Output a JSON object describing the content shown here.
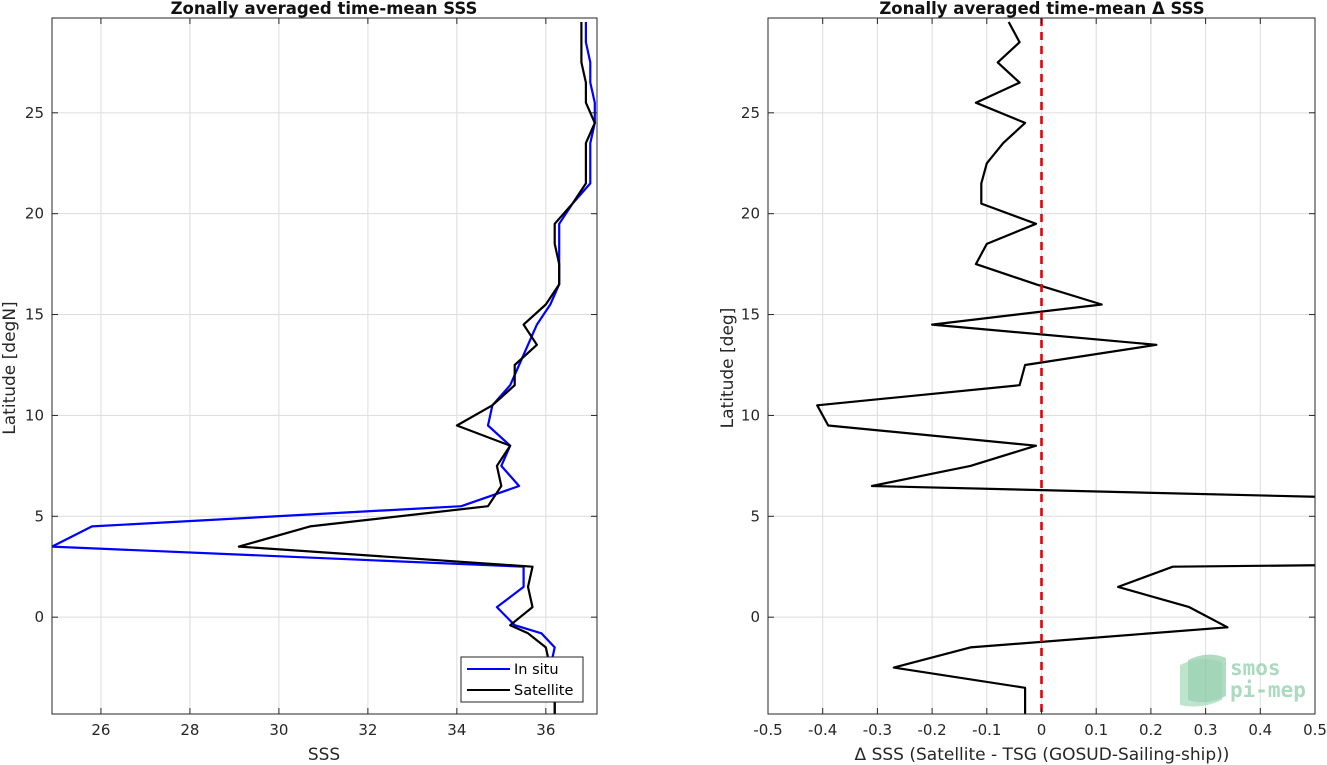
{
  "chart_data": [
    {
      "type": "line",
      "title": "Zonally averaged time-mean SSS",
      "xlabel": "SSS",
      "ylabel": "Latitude [degN]",
      "xlim": [
        24.9,
        37.15
      ],
      "ylim": [
        -4.8,
        29.7
      ],
      "xticks": [
        26,
        28,
        30,
        32,
        34,
        36
      ],
      "yticks": [
        0,
        5,
        10,
        15,
        20,
        25
      ],
      "grid": true,
      "legend_position": "bottom-right",
      "series": [
        {
          "name": "In situ",
          "color": "#0000ff",
          "points": [
            [
              36.2,
              -4.8
            ],
            [
              36.2,
              -3.5
            ],
            [
              36.1,
              -2.5
            ],
            [
              36.2,
              -1.5
            ],
            [
              35.9,
              -0.8
            ],
            [
              35.3,
              -0.4
            ],
            [
              34.9,
              0.5
            ],
            [
              35.5,
              1.5
            ],
            [
              35.5,
              2.5
            ],
            [
              24.9,
              3.5
            ],
            [
              25.8,
              4.5
            ],
            [
              34.1,
              5.5
            ],
            [
              35.4,
              6.5
            ],
            [
              35.0,
              7.5
            ],
            [
              35.2,
              8.5
            ],
            [
              34.7,
              9.5
            ],
            [
              34.8,
              10.5
            ],
            [
              35.2,
              11.5
            ],
            [
              35.4,
              12.5
            ],
            [
              35.6,
              13.5
            ],
            [
              35.8,
              14.5
            ],
            [
              36.1,
              15.5
            ],
            [
              36.3,
              16.5
            ],
            [
              36.3,
              17.5
            ],
            [
              36.3,
              18.5
            ],
            [
              36.3,
              19.5
            ],
            [
              36.6,
              20.5
            ],
            [
              37.0,
              21.5
            ],
            [
              37.0,
              22.5
            ],
            [
              37.0,
              23.5
            ],
            [
              37.1,
              24.5
            ],
            [
              37.1,
              25.5
            ],
            [
              37.0,
              26.5
            ],
            [
              37.0,
              27.5
            ],
            [
              36.9,
              28.5
            ],
            [
              36.9,
              29.5
            ]
          ]
        },
        {
          "name": "Satellite",
          "color": "#000000",
          "points": [
            [
              36.2,
              -4.8
            ],
            [
              36.2,
              -3.5
            ],
            [
              36.1,
              -2.5
            ],
            [
              36.0,
              -1.5
            ],
            [
              35.6,
              -0.8
            ],
            [
              35.2,
              -0.4
            ],
            [
              35.7,
              0.5
            ],
            [
              35.6,
              1.5
            ],
            [
              35.7,
              2.5
            ],
            [
              29.1,
              3.5
            ],
            [
              30.7,
              4.5
            ],
            [
              34.7,
              5.5
            ],
            [
              35.0,
              6.5
            ],
            [
              34.9,
              7.5
            ],
            [
              35.2,
              8.5
            ],
            [
              34.0,
              9.5
            ],
            [
              34.8,
              10.5
            ],
            [
              35.3,
              11.5
            ],
            [
              35.3,
              12.5
            ],
            [
              35.8,
              13.5
            ],
            [
              35.5,
              14.5
            ],
            [
              36.0,
              15.5
            ],
            [
              36.3,
              16.5
            ],
            [
              36.3,
              17.5
            ],
            [
              36.2,
              18.5
            ],
            [
              36.2,
              19.5
            ],
            [
              36.6,
              20.5
            ],
            [
              36.9,
              21.5
            ],
            [
              36.9,
              22.5
            ],
            [
              36.9,
              23.5
            ],
            [
              37.1,
              24.5
            ],
            [
              36.9,
              25.5
            ],
            [
              36.9,
              26.5
            ],
            [
              36.8,
              27.5
            ],
            [
              36.8,
              28.5
            ],
            [
              36.8,
              29.5
            ]
          ]
        }
      ]
    },
    {
      "type": "line",
      "title": "Zonally averaged time-mean Δ SSS",
      "xlabel": "Δ SSS (Satellite - TSG (GOSUD-Sailing-ship))",
      "ylabel": "Latitude [deg]",
      "xlim": [
        -0.5,
        0.5
      ],
      "ylim": [
        -4.8,
        29.7
      ],
      "xticks": [
        -0.5,
        -0.4,
        -0.3,
        -0.2,
        -0.1,
        0,
        0.1,
        0.2,
        0.3,
        0.4,
        0.5
      ],
      "xticklabels": [
        "-0.5",
        "-0.4",
        "-0.3",
        "-0.2",
        "-0.1",
        "0",
        "0.1",
        "0.2",
        "0.3",
        "0.4",
        "0.5"
      ],
      "yticks": [
        0,
        5,
        10,
        15,
        20,
        25
      ],
      "grid": true,
      "zero_line": {
        "x": 0,
        "color": "#e8000b",
        "style": "dashed"
      },
      "series": [
        {
          "color": "#000000",
          "points": [
            [
              -0.03,
              -4.8
            ],
            [
              -0.03,
              -3.5
            ],
            [
              -0.27,
              -2.5
            ],
            [
              -0.13,
              -1.5
            ],
            [
              0.34,
              -0.5
            ],
            [
              0.27,
              0.5
            ],
            [
              0.14,
              1.5
            ],
            [
              0.24,
              2.5
            ],
            [
              0.6,
              2.6
            ],
            [
              0.6,
              5.9
            ],
            [
              -0.31,
              6.5
            ],
            [
              -0.13,
              7.5
            ],
            [
              -0.01,
              8.5
            ],
            [
              -0.39,
              9.5
            ],
            [
              -0.41,
              10.5
            ],
            [
              -0.04,
              11.5
            ],
            [
              -0.03,
              12.5
            ],
            [
              0.21,
              13.5
            ],
            [
              -0.2,
              14.5
            ],
            [
              0.11,
              15.5
            ],
            [
              -0.01,
              16.5
            ],
            [
              -0.12,
              17.5
            ],
            [
              -0.1,
              18.5
            ],
            [
              -0.01,
              19.5
            ],
            [
              -0.11,
              20.5
            ],
            [
              -0.11,
              21.5
            ],
            [
              -0.1,
              22.5
            ],
            [
              -0.07,
              23.5
            ],
            [
              -0.03,
              24.5
            ],
            [
              -0.12,
              25.5
            ],
            [
              -0.04,
              26.5
            ],
            [
              -0.08,
              27.5
            ],
            [
              -0.04,
              28.5
            ],
            [
              -0.06,
              29.5
            ]
          ]
        }
      ]
    }
  ],
  "logo": {
    "line1": "smos",
    "line2": "pi-mep"
  }
}
